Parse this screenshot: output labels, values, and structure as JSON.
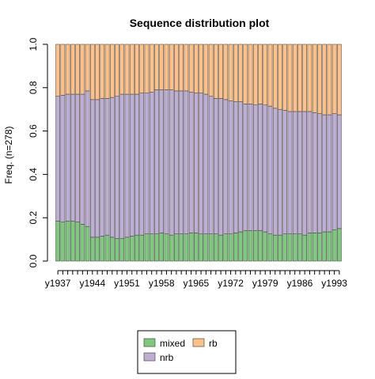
{
  "chart_data": {
    "type": "bar",
    "stacked": true,
    "title": "Sequence distribution plot",
    "ylabel": "Freq. (n=278)",
    "xlabel": "",
    "ylim": [
      0,
      1
    ],
    "yticks": [
      "0.0",
      "0.2",
      "0.4",
      "0.6",
      "0.8",
      "1.0"
    ],
    "xtick_labels": [
      "y1937",
      "y1944",
      "y1951",
      "y1958",
      "y1965",
      "y1972",
      "y1979",
      "y1986",
      "y1993"
    ],
    "categories": [
      "y1937",
      "y1938",
      "y1939",
      "y1940",
      "y1941",
      "y1942",
      "y1943",
      "y1944",
      "y1945",
      "y1946",
      "y1947",
      "y1948",
      "y1949",
      "y1950",
      "y1951",
      "y1952",
      "y1953",
      "y1954",
      "y1955",
      "y1956",
      "y1957",
      "y1958",
      "y1959",
      "y1960",
      "y1961",
      "y1962",
      "y1963",
      "y1964",
      "y1965",
      "y1966",
      "y1967",
      "y1968",
      "y1969",
      "y1970",
      "y1971",
      "y1972",
      "y1973",
      "y1974",
      "y1975",
      "y1976",
      "y1977",
      "y1978",
      "y1979",
      "y1980",
      "y1981",
      "y1982",
      "y1983",
      "y1984",
      "y1985",
      "y1986",
      "y1987",
      "y1988",
      "y1989",
      "y1990",
      "y1991",
      "y1992",
      "y1993",
      "y1994"
    ],
    "series": [
      {
        "name": "mixed",
        "color": "#7fc97f",
        "values": [
          0.185,
          0.18,
          0.185,
          0.185,
          0.18,
          0.17,
          0.16,
          0.11,
          0.11,
          0.115,
          0.12,
          0.11,
          0.105,
          0.105,
          0.11,
          0.115,
          0.12,
          0.12,
          0.125,
          0.125,
          0.125,
          0.13,
          0.125,
          0.12,
          0.125,
          0.125,
          0.125,
          0.13,
          0.13,
          0.125,
          0.125,
          0.125,
          0.125,
          0.12,
          0.125,
          0.125,
          0.13,
          0.135,
          0.14,
          0.14,
          0.14,
          0.14,
          0.135,
          0.125,
          0.12,
          0.12,
          0.125,
          0.125,
          0.125,
          0.125,
          0.12,
          0.13,
          0.13,
          0.13,
          0.135,
          0.135,
          0.145,
          0.15
        ]
      },
      {
        "name": "nrb",
        "color": "#beaed4",
        "values": [
          0.575,
          0.585,
          0.585,
          0.585,
          0.59,
          0.6,
          0.625,
          0.635,
          0.635,
          0.635,
          0.63,
          0.645,
          0.655,
          0.665,
          0.66,
          0.655,
          0.65,
          0.655,
          0.65,
          0.655,
          0.665,
          0.66,
          0.665,
          0.67,
          0.66,
          0.66,
          0.66,
          0.65,
          0.645,
          0.65,
          0.645,
          0.635,
          0.625,
          0.63,
          0.62,
          0.615,
          0.605,
          0.6,
          0.585,
          0.585,
          0.58,
          0.585,
          0.585,
          0.59,
          0.585,
          0.58,
          0.57,
          0.565,
          0.565,
          0.565,
          0.57,
          0.56,
          0.555,
          0.55,
          0.54,
          0.54,
          0.535,
          0.525
        ]
      },
      {
        "name": "rb",
        "color": "#fdc086",
        "values": [
          0.24,
          0.235,
          0.23,
          0.23,
          0.23,
          0.23,
          0.215,
          0.255,
          0.255,
          0.25,
          0.25,
          0.245,
          0.24,
          0.23,
          0.23,
          0.23,
          0.23,
          0.225,
          0.225,
          0.22,
          0.21,
          0.21,
          0.21,
          0.21,
          0.215,
          0.215,
          0.215,
          0.22,
          0.225,
          0.225,
          0.23,
          0.24,
          0.25,
          0.25,
          0.255,
          0.26,
          0.265,
          0.265,
          0.275,
          0.275,
          0.28,
          0.275,
          0.28,
          0.285,
          0.295,
          0.3,
          0.305,
          0.31,
          0.31,
          0.31,
          0.31,
          0.31,
          0.315,
          0.32,
          0.325,
          0.325,
          0.32,
          0.325
        ]
      }
    ],
    "legend": {
      "placement": "bottom-center",
      "items": [
        {
          "label": "mixed",
          "color": "#7fc97f"
        },
        {
          "label": "rb",
          "color": "#fdc086"
        },
        {
          "label": "nrb",
          "color": "#beaed4"
        }
      ]
    }
  }
}
